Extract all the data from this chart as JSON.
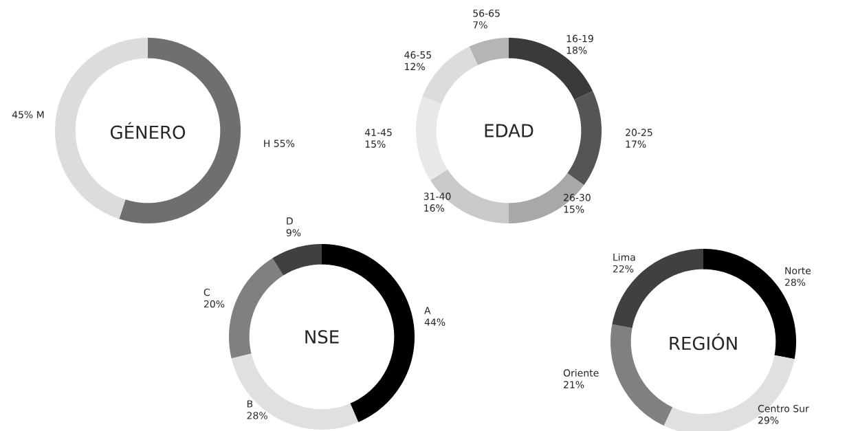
{
  "chart_data": [
    {
      "type": "donut",
      "title": "GÉNERO",
      "categories": [
        "H",
        "M"
      ],
      "values": [
        55,
        45
      ],
      "value_labels": [
        "55%",
        "45%"
      ],
      "colors": [
        "#6f6f6f",
        "#dcdcdc"
      ]
    },
    {
      "type": "donut",
      "title": "EDAD",
      "categories": [
        "16-19",
        "20-25",
        "26-30",
        "31-40",
        "41-45",
        "46-55",
        "56-65"
      ],
      "values": [
        18,
        17,
        15,
        16,
        15,
        12,
        7
      ],
      "value_labels": [
        "18%",
        "17%",
        "15%",
        "16%",
        "15%",
        "12%",
        "7%"
      ],
      "colors": [
        "#3a3a3a",
        "#555555",
        "#a8a8a8",
        "#c9c9c9",
        "#e8e8e8",
        "#dcdcdc",
        "#b5b5b5"
      ]
    },
    {
      "type": "donut",
      "title": "NSE",
      "categories": [
        "A",
        "B",
        "C",
        "D"
      ],
      "values": [
        44,
        28,
        20,
        9
      ],
      "value_labels": [
        "44%",
        "28%",
        "20%",
        "9%"
      ],
      "colors": [
        "#000000",
        "#e0e0e0",
        "#808080",
        "#404040"
      ]
    },
    {
      "type": "donut",
      "title": "REGIÓN",
      "categories": [
        "Norte",
        "Centro Sur",
        "Oriente",
        "Lima"
      ],
      "values": [
        28,
        29,
        21,
        22
      ],
      "value_labels": [
        "28%",
        "29%",
        "21%",
        "22%"
      ],
      "colors": [
        "#000000",
        "#e0e0e0",
        "#808080",
        "#404040"
      ]
    }
  ]
}
